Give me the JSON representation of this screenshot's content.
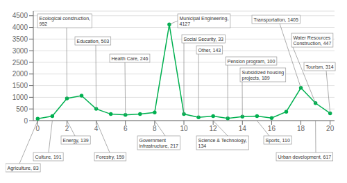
{
  "chart_data": {
    "type": "line",
    "x": [
      0,
      1,
      2,
      3,
      4,
      5,
      6,
      7,
      8,
      9,
      10,
      11,
      12,
      13,
      14,
      15,
      16,
      17,
      18,
      19,
      20
    ],
    "values": [
      83,
      191,
      952,
      1070,
      503,
      280,
      246,
      280,
      350,
      4127,
      280,
      143,
      190,
      100,
      170,
      190,
      110,
      380,
      1405,
      750,
      314
    ],
    "color": "#00b050",
    "marker": "circle",
    "xlim": [
      -0.3,
      20.3
    ],
    "ylim": [
      0,
      4700
    ],
    "xticks": [
      0,
      2,
      4,
      6,
      8,
      10,
      12,
      14,
      16,
      18,
      20
    ],
    "yticks": [
      0,
      500,
      1000,
      1500,
      2000,
      2500,
      3000,
      3500,
      4000,
      4500
    ],
    "grid": true,
    "annotations": [
      "Ecological construction,\n952",
      "Education, 503",
      "Health Care, 246",
      "Municipal Engineering,\n4127",
      "Social Security, 33",
      "Other, 143",
      "Pension program, 100",
      "Subsidized housing\nprojects, 189",
      "Transportation, 1405",
      "Water Resources\nConstruction, 447",
      "Tourism, 314",
      "Agriculture, 83",
      "Culture, 191",
      "Energy, 139",
      "Forestry, 159",
      "Government\ninfrastructure, 217",
      "Science & Technology,\n134",
      "Sports, 110",
      "Urban development, 617"
    ]
  }
}
